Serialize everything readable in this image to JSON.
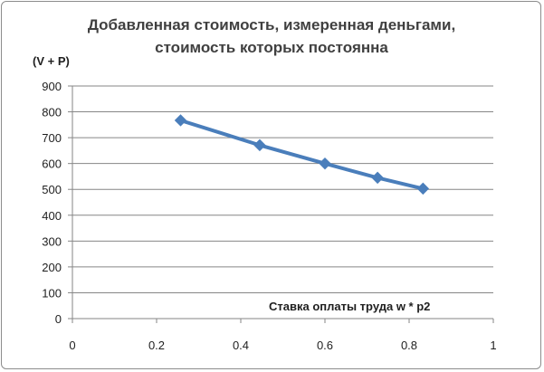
{
  "chart_data": {
    "type": "line",
    "title_lines": [
      "Добавленная стоимость, измеренная деньгами,",
      "стоимость которых  постоянна"
    ],
    "ylabel": "(V + P)",
    "xlabel": "Ставка  оплаты труда  w * p2",
    "xlim": [
      0,
      1
    ],
    "ylim": [
      0,
      900
    ],
    "x_ticks": [
      0,
      0.2,
      0.4,
      0.6,
      0.8,
      1
    ],
    "y_ticks": [
      0,
      100,
      200,
      300,
      400,
      500,
      600,
      700,
      800,
      900
    ],
    "x_tick_labels": [
      "0",
      "0.2",
      "0.4",
      "0.6",
      "0.8",
      "1"
    ],
    "y_tick_labels": [
      "0",
      "100",
      "200",
      "300",
      "400",
      "500",
      "600",
      "700",
      "800",
      "900"
    ],
    "grid": "horizontal",
    "series": [
      {
        "color": "#4a7ebb",
        "marker": "diamond",
        "x": [
          0.257,
          0.445,
          0.6,
          0.725,
          0.833
        ],
        "y": [
          767,
          671,
          600,
          545,
          503
        ]
      }
    ]
  }
}
